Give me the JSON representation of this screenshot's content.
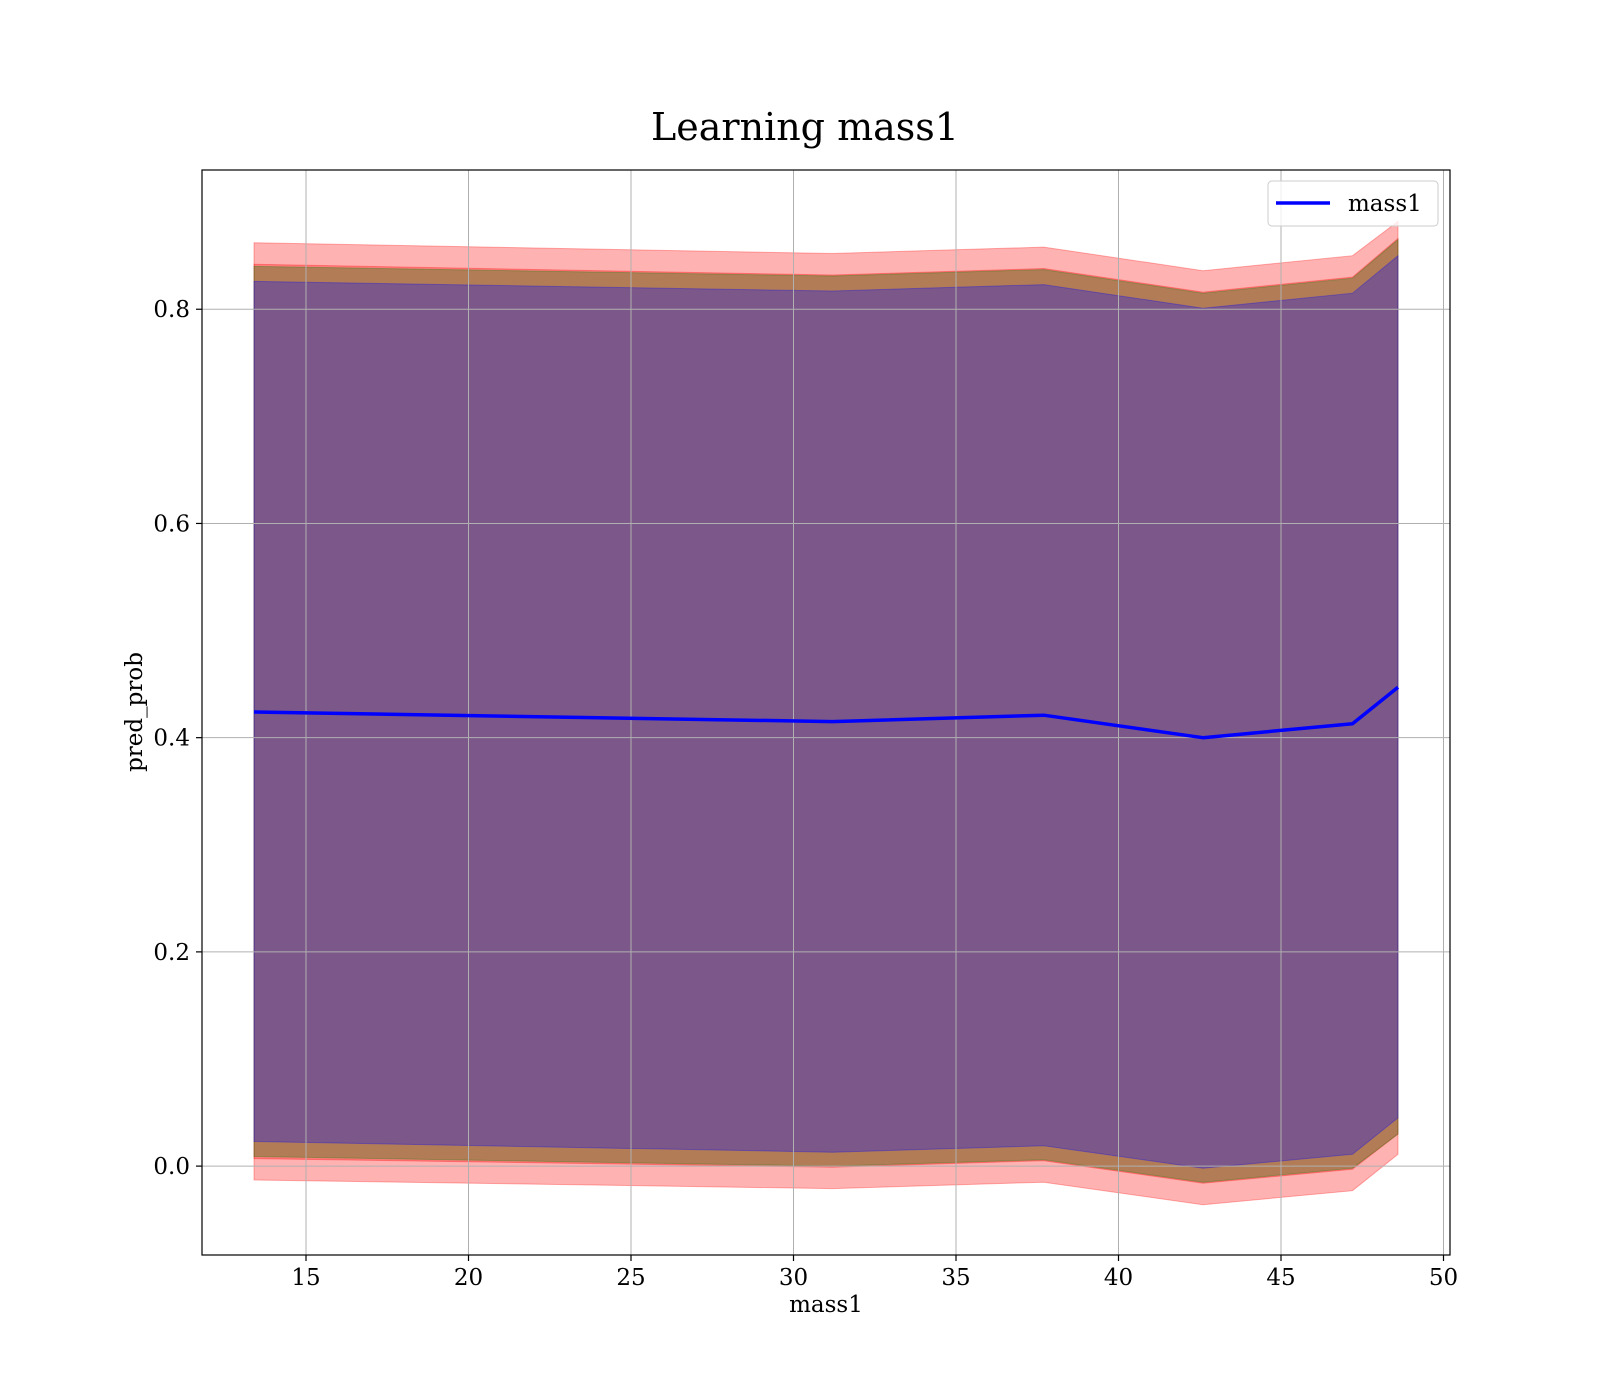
{
  "chart_data": {
    "type": "area",
    "title": "Learning mass1",
    "xlabel": "mass1",
    "ylabel": "pred_prob",
    "xlim": [
      11.8,
      50.2
    ],
    "ylim": [
      -0.083,
      0.93
    ],
    "xticks": [
      15,
      20,
      25,
      30,
      35,
      40,
      45,
      50
    ],
    "yticks": [
      0.0,
      0.2,
      0.4,
      0.6,
      0.8
    ],
    "ytick_labels": [
      "0.0",
      "0.2",
      "0.4",
      "0.6",
      "0.8"
    ],
    "grid": true,
    "legend": {
      "position": "top-right",
      "entries": [
        "mass1"
      ]
    },
    "x": [
      13.4,
      31.2,
      37.7,
      42.6,
      47.2,
      48.6
    ],
    "series": [
      {
        "name": "mass1",
        "color": "#0000ff",
        "y": [
          0.424,
          0.415,
          0.421,
          0.4,
          0.413,
          0.447
        ]
      }
    ],
    "bands": [
      {
        "color": "#ff0000",
        "alpha": 0.3,
        "upper": [
          0.862,
          0.852,
          0.858,
          0.836,
          0.85,
          0.882
        ],
        "lower": [
          -0.013,
          -0.021,
          -0.015,
          -0.036,
          -0.023,
          0.011
        ]
      },
      {
        "color": "#ff0000",
        "alpha": 0.3,
        "upper": [
          0.842,
          0.832,
          0.838,
          0.816,
          0.83,
          0.866
        ],
        "lower": [
          0.007,
          -0.001,
          0.005,
          -0.016,
          -0.003,
          0.03
        ]
      },
      {
        "color": "#008000",
        "alpha": 0.3,
        "upper": [
          0.84,
          0.831,
          0.837,
          0.815,
          0.829,
          0.865
        ],
        "lower": [
          0.009,
          0.0,
          0.006,
          -0.015,
          -0.002,
          0.03
        ]
      },
      {
        "color": "#0000ff",
        "alpha": 0.3,
        "upper": [
          0.826,
          0.817,
          0.823,
          0.801,
          0.815,
          0.85
        ],
        "lower": [
          0.023,
          0.013,
          0.019,
          -0.002,
          0.011,
          0.045
        ]
      }
    ]
  }
}
